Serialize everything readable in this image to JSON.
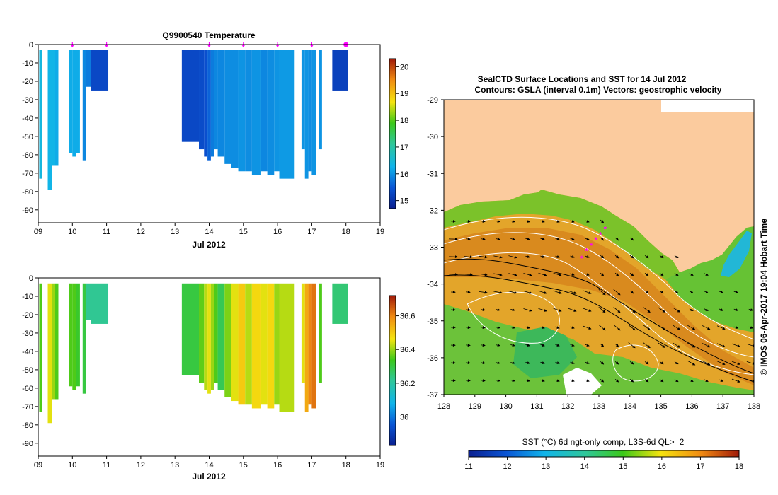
{
  "colors": {
    "land": "#FBCB9E",
    "axis": "#000000",
    "profile_mark": "#FF00FF",
    "contour": "#FFFFFF",
    "vector": "#000000"
  },
  "chart_data": [
    {
      "id": "temperature",
      "type": "heatmap",
      "title": "Q9900540  Temperature",
      "xlabel": "Jul 2012",
      "ylabel": "",
      "xlim": [
        9,
        19
      ],
      "ylim": [
        -97,
        0
      ],
      "x_ticks": [
        "09",
        "10",
        "11",
        "12",
        "13",
        "14",
        "15",
        "16",
        "17",
        "18",
        "19"
      ],
      "y_ticks": [
        "0",
        "-10",
        "-20",
        "-30",
        "-40",
        "-50",
        "-60",
        "-70",
        "-80",
        "-90"
      ],
      "colorbar": {
        "min": 14.7,
        "max": 20.3,
        "ticks": [
          "15",
          "16",
          "17",
          "18",
          "19",
          "20"
        ]
      },
      "profile_markers": [
        10.0,
        11.0,
        14.0,
        15.0,
        16.0,
        17.0,
        18.0
      ],
      "profiles": [
        {
          "x0": 9.03,
          "x1": 9.12,
          "depth": 73,
          "value": 16.4
        },
        {
          "x0": 9.28,
          "x1": 9.4,
          "depth": 79,
          "value": 16.3
        },
        {
          "x0": 9.4,
          "x1": 9.48,
          "depth": 66,
          "value": 16.3
        },
        {
          "x0": 9.48,
          "x1": 9.59,
          "depth": 66,
          "value": 16.2
        },
        {
          "x0": 9.9,
          "x1": 10.0,
          "depth": 59,
          "value": 16.2
        },
        {
          "x0": 10.0,
          "x1": 10.1,
          "depth": 61,
          "value": 16.2
        },
        {
          "x0": 10.1,
          "x1": 10.22,
          "depth": 59,
          "value": 16.2
        },
        {
          "x0": 10.3,
          "x1": 10.4,
          "depth": 63,
          "value": 15.9
        },
        {
          "x0": 10.4,
          "x1": 10.55,
          "depth": 23,
          "value": 15.8
        },
        {
          "x0": 10.55,
          "x1": 11.05,
          "depth": 25,
          "value": 15.3
        },
        {
          "x0": 13.2,
          "x1": 13.7,
          "depth": 53,
          "value": 15.3
        },
        {
          "x0": 13.7,
          "x1": 13.85,
          "depth": 57,
          "value": 15.35
        },
        {
          "x0": 13.85,
          "x1": 13.95,
          "depth": 61,
          "value": 15.4
        },
        {
          "x0": 13.95,
          "x1": 14.05,
          "depth": 63,
          "value": 15.6
        },
        {
          "x0": 14.05,
          "x1": 14.15,
          "depth": 61,
          "value": 15.8
        },
        {
          "x0": 14.15,
          "x1": 14.25,
          "depth": 57,
          "value": 15.9
        },
        {
          "x0": 14.25,
          "x1": 14.45,
          "depth": 61,
          "value": 15.9
        },
        {
          "x0": 14.45,
          "x1": 14.65,
          "depth": 65,
          "value": 15.95
        },
        {
          "x0": 14.65,
          "x1": 14.85,
          "depth": 67,
          "value": 15.95
        },
        {
          "x0": 14.85,
          "x1": 15.05,
          "depth": 69,
          "value": 16.0
        },
        {
          "x0": 15.05,
          "x1": 15.25,
          "depth": 69,
          "value": 15.95
        },
        {
          "x0": 15.25,
          "x1": 15.5,
          "depth": 71,
          "value": 16.0
        },
        {
          "x0": 15.5,
          "x1": 15.7,
          "depth": 69,
          "value": 15.9
        },
        {
          "x0": 15.7,
          "x1": 15.9,
          "depth": 71,
          "value": 15.95
        },
        {
          "x0": 15.9,
          "x1": 16.05,
          "depth": 69,
          "value": 16.0
        },
        {
          "x0": 16.05,
          "x1": 16.5,
          "depth": 73,
          "value": 16.05
        },
        {
          "x0": 16.7,
          "x1": 16.8,
          "depth": 57,
          "value": 16.0
        },
        {
          "x0": 16.8,
          "x1": 16.9,
          "depth": 73,
          "value": 16.0
        },
        {
          "x0": 16.9,
          "x1": 17.0,
          "depth": 69,
          "value": 15.95
        },
        {
          "x0": 17.0,
          "x1": 17.12,
          "depth": 71,
          "value": 16.0
        },
        {
          "x0": 17.2,
          "x1": 17.3,
          "depth": 57,
          "value": 16.0
        },
        {
          "x0": 17.6,
          "x1": 18.05,
          "depth": 25,
          "value": 15.2
        }
      ]
    },
    {
      "id": "salinity",
      "type": "heatmap",
      "title": "",
      "xlabel": "Jul 2012",
      "ylabel": "",
      "xlim": [
        9,
        19
      ],
      "ylim": [
        -97,
        0
      ],
      "x_ticks": [
        "09",
        "10",
        "11",
        "12",
        "13",
        "14",
        "15",
        "16",
        "17",
        "18",
        "19"
      ],
      "y_ticks": [
        "0",
        "-10",
        "-20",
        "-30",
        "-40",
        "-50",
        "-60",
        "-70",
        "-80",
        "-90"
      ],
      "colorbar": {
        "min": 35.83,
        "max": 36.72,
        "ticks": [
          "36",
          "36.2",
          "36.4",
          "36.6"
        ]
      },
      "profiles": [
        {
          "x0": 9.03,
          "x1": 9.12,
          "depth": 73,
          "value": 36.35
        },
        {
          "x0": 9.28,
          "x1": 9.4,
          "depth": 79,
          "value": 36.45
        },
        {
          "x0": 9.4,
          "x1": 9.48,
          "depth": 66,
          "value": 36.4
        },
        {
          "x0": 9.48,
          "x1": 9.59,
          "depth": 66,
          "value": 36.35
        },
        {
          "x0": 9.9,
          "x1": 10.0,
          "depth": 59,
          "value": 36.35
        },
        {
          "x0": 10.0,
          "x1": 10.1,
          "depth": 61,
          "value": 36.35
        },
        {
          "x0": 10.1,
          "x1": 10.22,
          "depth": 59,
          "value": 36.32
        },
        {
          "x0": 10.3,
          "x1": 10.4,
          "depth": 63,
          "value": 36.3
        },
        {
          "x0": 10.4,
          "x1": 10.55,
          "depth": 23,
          "value": 36.22
        },
        {
          "x0": 10.55,
          "x1": 11.05,
          "depth": 25,
          "value": 36.22
        },
        {
          "x0": 13.2,
          "x1": 13.7,
          "depth": 53,
          "value": 36.3
        },
        {
          "x0": 13.7,
          "x1": 13.85,
          "depth": 57,
          "value": 36.36
        },
        {
          "x0": 13.85,
          "x1": 13.95,
          "depth": 61,
          "value": 36.42
        },
        {
          "x0": 13.95,
          "x1": 14.05,
          "depth": 63,
          "value": 36.45
        },
        {
          "x0": 14.05,
          "x1": 14.15,
          "depth": 61,
          "value": 36.4
        },
        {
          "x0": 14.15,
          "x1": 14.25,
          "depth": 57,
          "value": 36.35
        },
        {
          "x0": 14.25,
          "x1": 14.45,
          "depth": 61,
          "value": 36.28
        },
        {
          "x0": 14.45,
          "x1": 14.65,
          "depth": 65,
          "value": 36.38
        },
        {
          "x0": 14.65,
          "x1": 14.85,
          "depth": 67,
          "value": 36.45
        },
        {
          "x0": 14.85,
          "x1": 15.05,
          "depth": 69,
          "value": 36.5
        },
        {
          "x0": 15.05,
          "x1": 15.25,
          "depth": 69,
          "value": 36.42
        },
        {
          "x0": 15.25,
          "x1": 15.5,
          "depth": 71,
          "value": 36.48
        },
        {
          "x0": 15.5,
          "x1": 15.7,
          "depth": 69,
          "value": 36.45
        },
        {
          "x0": 15.7,
          "x1": 15.9,
          "depth": 71,
          "value": 36.48
        },
        {
          "x0": 15.9,
          "x1": 16.05,
          "depth": 69,
          "value": 36.4
        },
        {
          "x0": 16.05,
          "x1": 16.5,
          "depth": 73,
          "value": 36.42
        },
        {
          "x0": 16.7,
          "x1": 16.8,
          "depth": 57,
          "value": 36.45
        },
        {
          "x0": 16.8,
          "x1": 16.9,
          "depth": 73,
          "value": 36.55
        },
        {
          "x0": 16.9,
          "x1": 17.0,
          "depth": 69,
          "value": 36.6
        },
        {
          "x0": 17.0,
          "x1": 17.12,
          "depth": 71,
          "value": 36.62
        },
        {
          "x0": 17.2,
          "x1": 17.3,
          "depth": 57,
          "value": 36.35
        },
        {
          "x0": 17.6,
          "x1": 18.05,
          "depth": 25,
          "value": 36.25
        }
      ]
    },
    {
      "id": "sst_map",
      "type": "heatmap",
      "title": "SealCTD Surface Locations and SST for 14 Jul 2012",
      "subtitle": "Contours: GSLA (interval 0.1m) Vectors: geostrophic velocity",
      "xlabel": "",
      "ylabel": "",
      "xlim": [
        128,
        138
      ],
      "ylim": [
        -37,
        -29
      ],
      "x_ticks": [
        "128",
        "129",
        "130",
        "131",
        "132",
        "133",
        "134",
        "135",
        "136",
        "137",
        "138"
      ],
      "y_ticks": [
        "-29",
        "-30",
        "-31",
        "-32",
        "-33",
        "-34",
        "-35",
        "-36",
        "-37"
      ],
      "colorbar": {
        "label": "SST (°C) 6d ngt-only comp, L3S-6d QL>=2",
        "min": 11,
        "max": 18,
        "ticks": [
          "11",
          "12",
          "13",
          "14",
          "15",
          "16",
          "17",
          "18"
        ]
      },
      "side_label": "© IMOS 06-Apr-2017 19:04 Hobart Time",
      "seal_track": [
        [
          132.45,
          -33.3
        ],
        [
          132.6,
          -33.1
        ],
        [
          132.75,
          -32.95
        ],
        [
          132.9,
          -32.8
        ],
        [
          133.05,
          -32.65
        ],
        [
          133.2,
          -32.5
        ]
      ]
    }
  ]
}
